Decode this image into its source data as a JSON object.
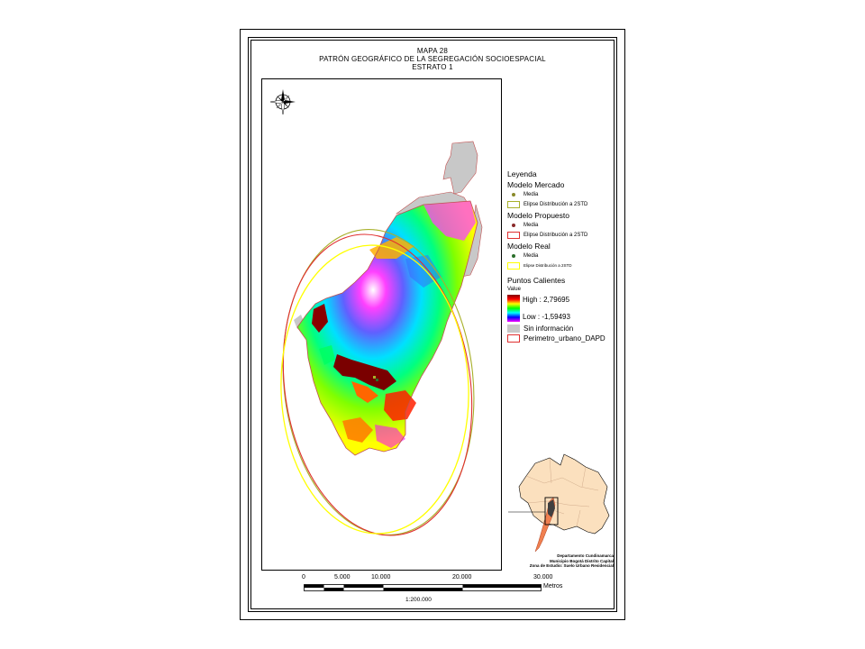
{
  "title": {
    "line1": "MAPA 28",
    "line2": "PATRÓN GEOGRÁFICO DE LA SEGREGACIÓN SOCIOESPACIAL",
    "line3": "ESTRATO 1"
  },
  "legend": {
    "heading": "Leyenda",
    "mercado": {
      "title": "Modelo Mercado",
      "media": "Media",
      "ellipse": "Elipse Distribución a 2STD",
      "color": "#a8b02a"
    },
    "propuesto": {
      "title": "Modelo Propuesto",
      "media": "Media",
      "ellipse": "Elipse Distribución a 2STD",
      "color": "#e03030"
    },
    "real": {
      "title": "Modelo Real",
      "media": "Media",
      "ellipse": "Elipse Distribución a 2STD",
      "color": "#ffff00"
    },
    "hotspots": {
      "title": "Puntos Calientes",
      "value_label": "Value",
      "high": "High : 2,79695",
      "low": "Low : -1,59493"
    },
    "sin_info": "Sin información",
    "perimetro": "Perimetro_urbano_DAPD"
  },
  "inset_credit": {
    "line1": "Departamento Cundinamarca",
    "line2": "Municipio Bogotá Distrito Capital",
    "line3": "Zona de Estudio: Suelo Urbano Residencial"
  },
  "scale": {
    "ticks": [
      "0",
      "5.000",
      "10.000",
      "20.000",
      "30.000"
    ],
    "unit": "Metros",
    "ratio": "1:200.000"
  },
  "icons": {
    "north_arrow": "compass-rose-icon"
  }
}
